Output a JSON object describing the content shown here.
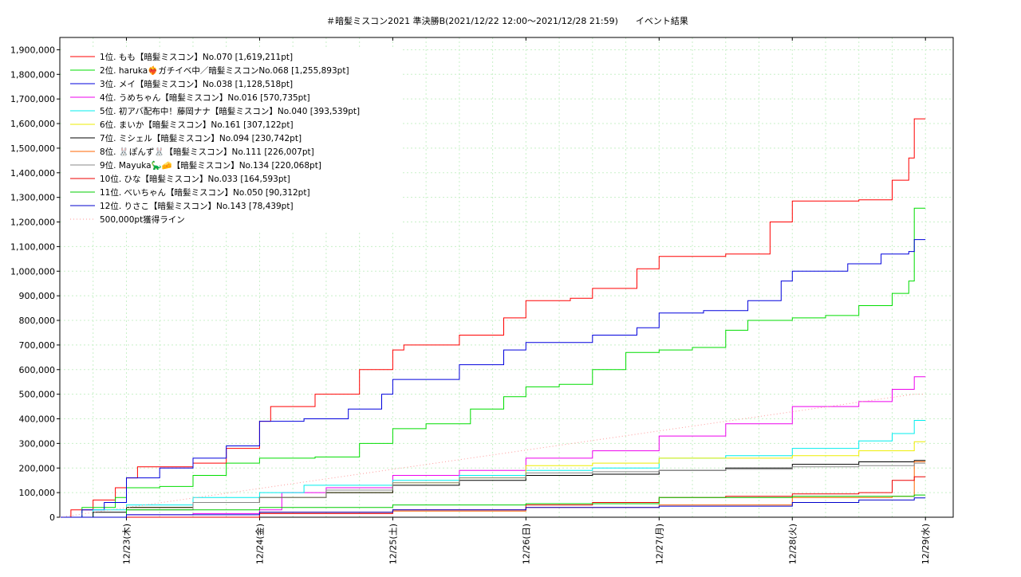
{
  "chart_data": {
    "type": "line",
    "title": "＃暗髪ミスコン2021 準決勝B(2021/12/22 12:00～2021/12/28 21:59)　　イベント結果",
    "xlabel": "",
    "ylabel": "",
    "x_range": [
      "2021-12-22 12:00",
      "2021-12-29 05:00"
    ],
    "ylim": [
      0,
      1950000
    ],
    "y_ticks": [
      0,
      100000,
      200000,
      300000,
      400000,
      500000,
      600000,
      700000,
      800000,
      900000,
      1000000,
      1100000,
      1200000,
      1300000,
      1400000,
      1500000,
      1600000,
      1700000,
      1800000,
      1900000
    ],
    "y_tick_labels": [
      "0",
      "100,000",
      "200,000",
      "300,000",
      "400,000",
      "500,000",
      "600,000",
      "700,000",
      "800,000",
      "900,000",
      "1,000,000",
      "1,100,000",
      "1,200,000",
      "1,300,000",
      "1,400,000",
      "1,500,000",
      "1,600,000",
      "1,700,000",
      "1,800,000",
      "1,900,000"
    ],
    "x_ticks": [
      "2021-12-23 00:00",
      "2021-12-24 00:00",
      "2021-12-25 00:00",
      "2021-12-26 00:00",
      "2021-12-27 00:00",
      "2021-12-28 00:00",
      "2021-12-29 00:00"
    ],
    "x_tick_labels": [
      "12/23(木)",
      "12/24(金)",
      "12/25(土)",
      "12/26(日)",
      "12/27(月)",
      "12/28(火)",
      "12/29(水)"
    ],
    "grid": true,
    "legend_position": "top-left",
    "series": [
      {
        "name": "1位. もも【暗髪ミスコン】No.070 [1,619,211pt]",
        "color": "#ff0000",
        "points": [
          [
            "2021-12-22 12:00",
            0
          ],
          [
            "2021-12-22 14:00",
            30000
          ],
          [
            "2021-12-22 18:00",
            70000
          ],
          [
            "2021-12-22 22:00",
            120000
          ],
          [
            "2021-12-23 00:00",
            160000
          ],
          [
            "2021-12-23 02:00",
            205000
          ],
          [
            "2021-12-23 06:00",
            205000
          ],
          [
            "2021-12-23 12:00",
            220000
          ],
          [
            "2021-12-23 18:00",
            280000
          ],
          [
            "2021-12-24 00:00",
            390000
          ],
          [
            "2021-12-24 02:00",
            450000
          ],
          [
            "2021-12-24 10:00",
            500000
          ],
          [
            "2021-12-24 18:00",
            600000
          ],
          [
            "2021-12-25 00:00",
            680000
          ],
          [
            "2021-12-25 02:00",
            700000
          ],
          [
            "2021-12-25 12:00",
            740000
          ],
          [
            "2021-12-25 20:00",
            810000
          ],
          [
            "2021-12-26 00:00",
            880000
          ],
          [
            "2021-12-26 08:00",
            890000
          ],
          [
            "2021-12-26 12:00",
            930000
          ],
          [
            "2021-12-26 20:00",
            1010000
          ],
          [
            "2021-12-27 00:00",
            1060000
          ],
          [
            "2021-12-27 12:00",
            1070000
          ],
          [
            "2021-12-27 20:00",
            1200000
          ],
          [
            "2021-12-28 00:00",
            1285000
          ],
          [
            "2021-12-28 12:00",
            1290000
          ],
          [
            "2021-12-28 18:00",
            1370000
          ],
          [
            "2021-12-28 21:00",
            1460000
          ],
          [
            "2021-12-28 21:59",
            1619211
          ],
          [
            "2021-12-29 00:00",
            1619211
          ]
        ]
      },
      {
        "name": "2位. haruka❤️‍🔥ガチイベ中／暗髪ミスコンNo.068 [1,255,893pt]",
        "color": "#00dd00",
        "points": [
          [
            "2021-12-22 12:00",
            0
          ],
          [
            "2021-12-22 16:00",
            40000
          ],
          [
            "2021-12-22 22:00",
            80000
          ],
          [
            "2021-12-23 00:00",
            120000
          ],
          [
            "2021-12-23 06:00",
            125000
          ],
          [
            "2021-12-23 12:00",
            170000
          ],
          [
            "2021-12-23 18:00",
            220000
          ],
          [
            "2021-12-24 00:00",
            240000
          ],
          [
            "2021-12-24 10:00",
            245000
          ],
          [
            "2021-12-24 18:00",
            300000
          ],
          [
            "2021-12-25 00:00",
            360000
          ],
          [
            "2021-12-25 06:00",
            380000
          ],
          [
            "2021-12-25 14:00",
            440000
          ],
          [
            "2021-12-25 20:00",
            490000
          ],
          [
            "2021-12-26 00:00",
            530000
          ],
          [
            "2021-12-26 06:00",
            540000
          ],
          [
            "2021-12-26 12:00",
            600000
          ],
          [
            "2021-12-26 18:00",
            670000
          ],
          [
            "2021-12-27 00:00",
            680000
          ],
          [
            "2021-12-27 06:00",
            690000
          ],
          [
            "2021-12-27 12:00",
            760000
          ],
          [
            "2021-12-27 16:00",
            800000
          ],
          [
            "2021-12-28 00:00",
            810000
          ],
          [
            "2021-12-28 06:00",
            820000
          ],
          [
            "2021-12-28 12:00",
            860000
          ],
          [
            "2021-12-28 18:00",
            910000
          ],
          [
            "2021-12-28 21:00",
            960000
          ],
          [
            "2021-12-28 21:59",
            1255893
          ],
          [
            "2021-12-29 00:00",
            1255893
          ]
        ]
      },
      {
        "name": "3位. メイ【暗髪ミスコン】No.038 [1,128,518pt]",
        "color": "#0000dd",
        "points": [
          [
            "2021-12-22 12:00",
            0
          ],
          [
            "2021-12-22 16:00",
            30000
          ],
          [
            "2021-12-22 20:00",
            60000
          ],
          [
            "2021-12-23 00:00",
            160000
          ],
          [
            "2021-12-23 06:00",
            200000
          ],
          [
            "2021-12-23 12:00",
            240000
          ],
          [
            "2021-12-23 18:00",
            290000
          ],
          [
            "2021-12-24 00:00",
            390000
          ],
          [
            "2021-12-24 08:00",
            400000
          ],
          [
            "2021-12-24 16:00",
            440000
          ],
          [
            "2021-12-24 22:00",
            500000
          ],
          [
            "2021-12-25 00:00",
            560000
          ],
          [
            "2021-12-25 12:00",
            620000
          ],
          [
            "2021-12-25 20:00",
            680000
          ],
          [
            "2021-12-26 00:00",
            710000
          ],
          [
            "2021-12-26 12:00",
            740000
          ],
          [
            "2021-12-26 20:00",
            770000
          ],
          [
            "2021-12-27 00:00",
            830000
          ],
          [
            "2021-12-27 08:00",
            840000
          ],
          [
            "2021-12-27 16:00",
            880000
          ],
          [
            "2021-12-27 22:00",
            960000
          ],
          [
            "2021-12-28 00:00",
            1000000
          ],
          [
            "2021-12-28 10:00",
            1030000
          ],
          [
            "2021-12-28 16:00",
            1070000
          ],
          [
            "2021-12-28 21:00",
            1080000
          ],
          [
            "2021-12-28 21:59",
            1128518
          ],
          [
            "2021-12-29 00:00",
            1128518
          ]
        ]
      },
      {
        "name": "4位. うめちゃん【暗髪ミスコン】No.016 [570,735pt]",
        "color": "#ee00ee",
        "points": [
          [
            "2021-12-22 12:00",
            0
          ],
          [
            "2021-12-23 00:00",
            10000
          ],
          [
            "2021-12-23 12:00",
            15000
          ],
          [
            "2021-12-24 00:00",
            30000
          ],
          [
            "2021-12-24 04:00",
            100000
          ],
          [
            "2021-12-24 12:00",
            120000
          ],
          [
            "2021-12-25 00:00",
            170000
          ],
          [
            "2021-12-25 12:00",
            190000
          ],
          [
            "2021-12-26 00:00",
            240000
          ],
          [
            "2021-12-26 12:00",
            270000
          ],
          [
            "2021-12-27 00:00",
            330000
          ],
          [
            "2021-12-27 12:00",
            380000
          ],
          [
            "2021-12-28 00:00",
            450000
          ],
          [
            "2021-12-28 12:00",
            470000
          ],
          [
            "2021-12-28 18:00",
            520000
          ],
          [
            "2021-12-28 21:59",
            570735
          ],
          [
            "2021-12-29 00:00",
            570735
          ]
        ]
      },
      {
        "name": "5位. 初アバ配布中！藤岡ナナ【暗髪ミスコン】No.040 [393,539pt]",
        "color": "#00eeee",
        "points": [
          [
            "2021-12-22 12:00",
            0
          ],
          [
            "2021-12-22 18:00",
            30000
          ],
          [
            "2021-12-23 00:00",
            50000
          ],
          [
            "2021-12-23 12:00",
            80000
          ],
          [
            "2021-12-24 00:00",
            100000
          ],
          [
            "2021-12-24 08:00",
            130000
          ],
          [
            "2021-12-25 00:00",
            150000
          ],
          [
            "2021-12-25 12:00",
            170000
          ],
          [
            "2021-12-26 00:00",
            190000
          ],
          [
            "2021-12-26 12:00",
            200000
          ],
          [
            "2021-12-27 00:00",
            240000
          ],
          [
            "2021-12-27 12:00",
            250000
          ],
          [
            "2021-12-28 00:00",
            280000
          ],
          [
            "2021-12-28 12:00",
            310000
          ],
          [
            "2021-12-28 18:00",
            340000
          ],
          [
            "2021-12-28 21:59",
            393539
          ],
          [
            "2021-12-29 00:00",
            393539
          ]
        ]
      },
      {
        "name": "6位. まいか【暗髪ミスコン】No.161 [307,122pt]",
        "color": "#eeee00",
        "points": [
          [
            "2021-12-22 12:00",
            0
          ],
          [
            "2021-12-23 00:00",
            40000
          ],
          [
            "2021-12-23 12:00",
            60000
          ],
          [
            "2021-12-24 00:00",
            80000
          ],
          [
            "2021-12-24 12:00",
            100000
          ],
          [
            "2021-12-25 00:00",
            140000
          ],
          [
            "2021-12-25 12:00",
            160000
          ],
          [
            "2021-12-26 00:00",
            210000
          ],
          [
            "2021-12-26 12:00",
            220000
          ],
          [
            "2021-12-27 00:00",
            240000
          ],
          [
            "2021-12-27 12:00",
            240000
          ],
          [
            "2021-12-28 00:00",
            250000
          ],
          [
            "2021-12-28 12:00",
            270000
          ],
          [
            "2021-12-28 21:59",
            307122
          ],
          [
            "2021-12-29 00:00",
            307122
          ]
        ]
      },
      {
        "name": "7位. ミシェル【暗髪ミスコン】No.094 [230,742pt]",
        "color": "#000000",
        "points": [
          [
            "2021-12-22 12:00",
            0
          ],
          [
            "2021-12-22 18:00",
            20000
          ],
          [
            "2021-12-23 00:00",
            40000
          ],
          [
            "2021-12-23 12:00",
            60000
          ],
          [
            "2021-12-24 00:00",
            80000
          ],
          [
            "2021-12-24 12:00",
            100000
          ],
          [
            "2021-12-25 00:00",
            130000
          ],
          [
            "2021-12-25 12:00",
            150000
          ],
          [
            "2021-12-26 00:00",
            170000
          ],
          [
            "2021-12-26 12:00",
            175000
          ],
          [
            "2021-12-27 00:00",
            190000
          ],
          [
            "2021-12-27 12:00",
            200000
          ],
          [
            "2021-12-28 00:00",
            215000
          ],
          [
            "2021-12-28 12:00",
            225000
          ],
          [
            "2021-12-28 21:59",
            230742
          ],
          [
            "2021-12-29 00:00",
            230742
          ]
        ]
      },
      {
        "name": "8位. 🐰ぽんず🐰【暗髪ミスコン】No.111 [226,007pt]",
        "color": "#ff6600",
        "points": [
          [
            "2021-12-22 12:00",
            0
          ],
          [
            "2021-12-23 00:00",
            0
          ],
          [
            "2021-12-24 00:00",
            20000
          ],
          [
            "2021-12-25 00:00",
            25000
          ],
          [
            "2021-12-26 00:00",
            40000
          ],
          [
            "2021-12-27 00:00",
            50000
          ],
          [
            "2021-12-28 00:00",
            80000
          ],
          [
            "2021-12-28 12:00",
            80000
          ],
          [
            "2021-12-28 18:00",
            85000
          ],
          [
            "2021-12-28 21:59",
            226007
          ],
          [
            "2021-12-29 00:00",
            226007
          ]
        ]
      },
      {
        "name": "9位. Mayuka🦕🧀【暗髪ミスコン】No.134 [220,068pt]",
        "color": "#888888",
        "points": [
          [
            "2021-12-22 12:00",
            0
          ],
          [
            "2021-12-23 00:00",
            30000
          ],
          [
            "2021-12-23 12:00",
            60000
          ],
          [
            "2021-12-24 00:00",
            80000
          ],
          [
            "2021-12-24 12:00",
            110000
          ],
          [
            "2021-12-25 00:00",
            140000
          ],
          [
            "2021-12-25 12:00",
            160000
          ],
          [
            "2021-12-26 00:00",
            180000
          ],
          [
            "2021-12-26 12:00",
            185000
          ],
          [
            "2021-12-27 00:00",
            190000
          ],
          [
            "2021-12-27 12:00",
            195000
          ],
          [
            "2021-12-28 00:00",
            205000
          ],
          [
            "2021-12-28 12:00",
            210000
          ],
          [
            "2021-12-28 21:59",
            220068
          ],
          [
            "2021-12-29 00:00",
            220068
          ]
        ]
      },
      {
        "name": "10位. ひな【暗髪ミスコン】No.033 [164,593pt]",
        "color": "#ee0000",
        "points": [
          [
            "2021-12-22 12:00",
            0
          ],
          [
            "2021-12-23 00:00",
            0
          ],
          [
            "2021-12-24 00:00",
            15000
          ],
          [
            "2021-12-25 00:00",
            30000
          ],
          [
            "2021-12-26 00:00",
            50000
          ],
          [
            "2021-12-26 12:00",
            60000
          ],
          [
            "2021-12-27 00:00",
            80000
          ],
          [
            "2021-12-27 12:00",
            85000
          ],
          [
            "2021-12-28 00:00",
            95000
          ],
          [
            "2021-12-28 12:00",
            100000
          ],
          [
            "2021-12-28 18:00",
            150000
          ],
          [
            "2021-12-28 21:59",
            164593
          ],
          [
            "2021-12-29 00:00",
            164593
          ]
        ]
      },
      {
        "name": "11位. べいちゃん【暗髪ミスコン】No.050 [90,312pt]",
        "color": "#00cc00",
        "points": [
          [
            "2021-12-22 12:00",
            0
          ],
          [
            "2021-12-23 00:00",
            30000
          ],
          [
            "2021-12-24 00:00",
            40000
          ],
          [
            "2021-12-25 00:00",
            50000
          ],
          [
            "2021-12-26 00:00",
            55000
          ],
          [
            "2021-12-27 00:00",
            80000
          ],
          [
            "2021-12-28 00:00",
            85000
          ],
          [
            "2021-12-28 21:59",
            90312
          ],
          [
            "2021-12-29 00:00",
            90312
          ]
        ]
      },
      {
        "name": "12位. りさこ【暗髪ミスコン】No.143 [78,439pt]",
        "color": "#0000cc",
        "points": [
          [
            "2021-12-22 12:00",
            0
          ],
          [
            "2021-12-23 00:00",
            10000
          ],
          [
            "2021-12-24 00:00",
            20000
          ],
          [
            "2021-12-25 00:00",
            30000
          ],
          [
            "2021-12-26 00:00",
            40000
          ],
          [
            "2021-12-27 00:00",
            45000
          ],
          [
            "2021-12-28 00:00",
            60000
          ],
          [
            "2021-12-28 12:00",
            70000
          ],
          [
            "2021-12-28 21:59",
            78439
          ],
          [
            "2021-12-29 00:00",
            78439
          ]
        ]
      },
      {
        "name": "500,000pt獲得ライン",
        "color": "#ff9999",
        "dashed": true,
        "points": [
          [
            "2021-12-22 12:00",
            0
          ],
          [
            "2021-12-28 21:59",
            500000
          ],
          [
            "2021-12-29 00:00",
            500000
          ]
        ]
      }
    ]
  }
}
